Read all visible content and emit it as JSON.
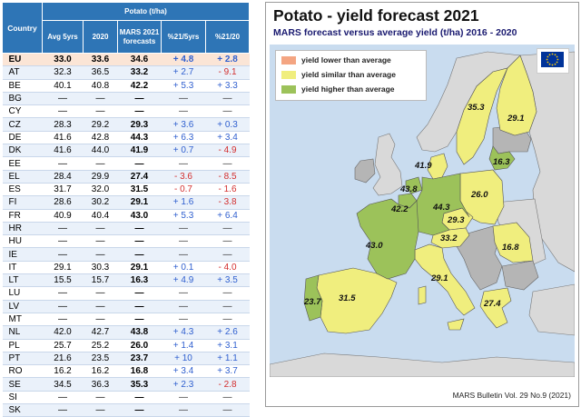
{
  "table": {
    "header_country": "Country",
    "header_group": "Potato (t/ha)",
    "columns": [
      "Avg 5yrs",
      "2020",
      "MARS 2021 forecasts",
      "%21/5yrs",
      "%21/20"
    ],
    "rows": [
      {
        "country": "EU",
        "avg": "33.0",
        "y2020": "33.6",
        "f2021": "34.6",
        "vs5": "+ 4.8",
        "vs20": "+ 2.8"
      },
      {
        "country": "AT",
        "avg": "32.3",
        "y2020": "36.5",
        "f2021": "33.2",
        "vs5": "+ 2.7",
        "vs20": "- 9.1"
      },
      {
        "country": "BE",
        "avg": "40.1",
        "y2020": "40.8",
        "f2021": "42.2",
        "vs5": "+ 5.3",
        "vs20": "+ 3.3"
      },
      {
        "country": "BG",
        "avg": "—",
        "y2020": "—",
        "f2021": "—",
        "vs5": "—",
        "vs20": "—"
      },
      {
        "country": "CY",
        "avg": "—",
        "y2020": "—",
        "f2021": "—",
        "vs5": "—",
        "vs20": "—"
      },
      {
        "country": "CZ",
        "avg": "28.3",
        "y2020": "29.2",
        "f2021": "29.3",
        "vs5": "+ 3.6",
        "vs20": "+ 0.3"
      },
      {
        "country": "DE",
        "avg": "41.6",
        "y2020": "42.8",
        "f2021": "44.3",
        "vs5": "+ 6.3",
        "vs20": "+ 3.4"
      },
      {
        "country": "DK",
        "avg": "41.6",
        "y2020": "44.0",
        "f2021": "41.9",
        "vs5": "+ 0.7",
        "vs20": "- 4.9"
      },
      {
        "country": "EE",
        "avg": "—",
        "y2020": "—",
        "f2021": "—",
        "vs5": "—",
        "vs20": "—"
      },
      {
        "country": "EL",
        "avg": "28.4",
        "y2020": "29.9",
        "f2021": "27.4",
        "vs5": "- 3.6",
        "vs20": "- 8.5"
      },
      {
        "country": "ES",
        "avg": "31.7",
        "y2020": "32.0",
        "f2021": "31.5",
        "vs5": "- 0.7",
        "vs20": "- 1.6"
      },
      {
        "country": "FI",
        "avg": "28.6",
        "y2020": "30.2",
        "f2021": "29.1",
        "vs5": "+ 1.6",
        "vs20": "- 3.8"
      },
      {
        "country": "FR",
        "avg": "40.9",
        "y2020": "40.4",
        "f2021": "43.0",
        "vs5": "+ 5.3",
        "vs20": "+ 6.4"
      },
      {
        "country": "HR",
        "avg": "—",
        "y2020": "—",
        "f2021": "—",
        "vs5": "—",
        "vs20": "—"
      },
      {
        "country": "HU",
        "avg": "—",
        "y2020": "—",
        "f2021": "—",
        "vs5": "—",
        "vs20": "—"
      },
      {
        "country": "IE",
        "avg": "—",
        "y2020": "—",
        "f2021": "—",
        "vs5": "—",
        "vs20": "—"
      },
      {
        "country": "IT",
        "avg": "29.1",
        "y2020": "30.3",
        "f2021": "29.1",
        "vs5": "+ 0.1",
        "vs20": "- 4.0"
      },
      {
        "country": "LT",
        "avg": "15.5",
        "y2020": "15.7",
        "f2021": "16.3",
        "vs5": "+ 4.9",
        "vs20": "+ 3.5"
      },
      {
        "country": "LU",
        "avg": "—",
        "y2020": "—",
        "f2021": "—",
        "vs5": "—",
        "vs20": "—"
      },
      {
        "country": "LV",
        "avg": "—",
        "y2020": "—",
        "f2021": "—",
        "vs5": "—",
        "vs20": "—"
      },
      {
        "country": "MT",
        "avg": "—",
        "y2020": "—",
        "f2021": "—",
        "vs5": "—",
        "vs20": "—"
      },
      {
        "country": "NL",
        "avg": "42.0",
        "y2020": "42.7",
        "f2021": "43.8",
        "vs5": "+ 4.3",
        "vs20": "+ 2.6"
      },
      {
        "country": "PL",
        "avg": "25.7",
        "y2020": "25.2",
        "f2021": "26.0",
        "vs5": "+ 1.4",
        "vs20": "+ 3.1"
      },
      {
        "country": "PT",
        "avg": "21.6",
        "y2020": "23.5",
        "f2021": "23.7",
        "vs5": "+ 10",
        "vs20": "+ 1.1"
      },
      {
        "country": "RO",
        "avg": "16.2",
        "y2020": "16.2",
        "f2021": "16.8",
        "vs5": "+ 3.4",
        "vs20": "+ 3.7"
      },
      {
        "country": "SE",
        "avg": "34.5",
        "y2020": "36.3",
        "f2021": "35.3",
        "vs5": "+ 2.3",
        "vs20": "- 2.8"
      },
      {
        "country": "SI",
        "avg": "—",
        "y2020": "—",
        "f2021": "—",
        "vs5": "—",
        "vs20": "—"
      },
      {
        "country": "SK",
        "avg": "—",
        "y2020": "—",
        "f2021": "—",
        "vs5": "—",
        "vs20": "—"
      }
    ]
  },
  "chart_data": {
    "type": "map",
    "title": "Potato - yield forecast 2021",
    "subtitle": "MARS forecast versus average yield (t/ha) 2016 - 2020",
    "legend": [
      {
        "label": "yield lower than average",
        "color": "#f4a582"
      },
      {
        "label": "yield similar than average",
        "color": "#f0ee7e"
      },
      {
        "label": "yield higher than average",
        "color": "#9cc25a"
      }
    ],
    "legend_position": "top-left",
    "credit": "MARS Bulletin Vol. 29 No.9 (2021)",
    "colors": {
      "sea": "#c9dcef",
      "no_data": "#b5b5b5",
      "non_eu": "#d9d9d9",
      "border": "#555555"
    },
    "regions": [
      {
        "country": "SE",
        "value": "35.3",
        "class": "similar"
      },
      {
        "country": "FI",
        "value": "29.1",
        "class": "similar"
      },
      {
        "country": "DK",
        "value": "41.9",
        "class": "similar"
      },
      {
        "country": "LT",
        "value": "16.3",
        "class": "higher"
      },
      {
        "country": "NL",
        "value": "43.8",
        "class": "higher"
      },
      {
        "country": "BE",
        "value": "42.2",
        "class": "higher"
      },
      {
        "country": "DE",
        "value": "44.3",
        "class": "higher"
      },
      {
        "country": "PL",
        "value": "26.0",
        "class": "similar"
      },
      {
        "country": "CZ",
        "value": "29.3",
        "class": "similar"
      },
      {
        "country": "AT",
        "value": "33.2",
        "class": "similar"
      },
      {
        "country": "FR",
        "value": "43.0",
        "class": "higher"
      },
      {
        "country": "RO",
        "value": "16.8",
        "class": "similar"
      },
      {
        "country": "IT",
        "value": "29.1",
        "class": "similar"
      },
      {
        "country": "PT",
        "value": "23.7",
        "class": "higher"
      },
      {
        "country": "ES",
        "value": "31.5",
        "class": "similar"
      },
      {
        "country": "EL",
        "value": "27.4",
        "class": "similar"
      }
    ]
  }
}
